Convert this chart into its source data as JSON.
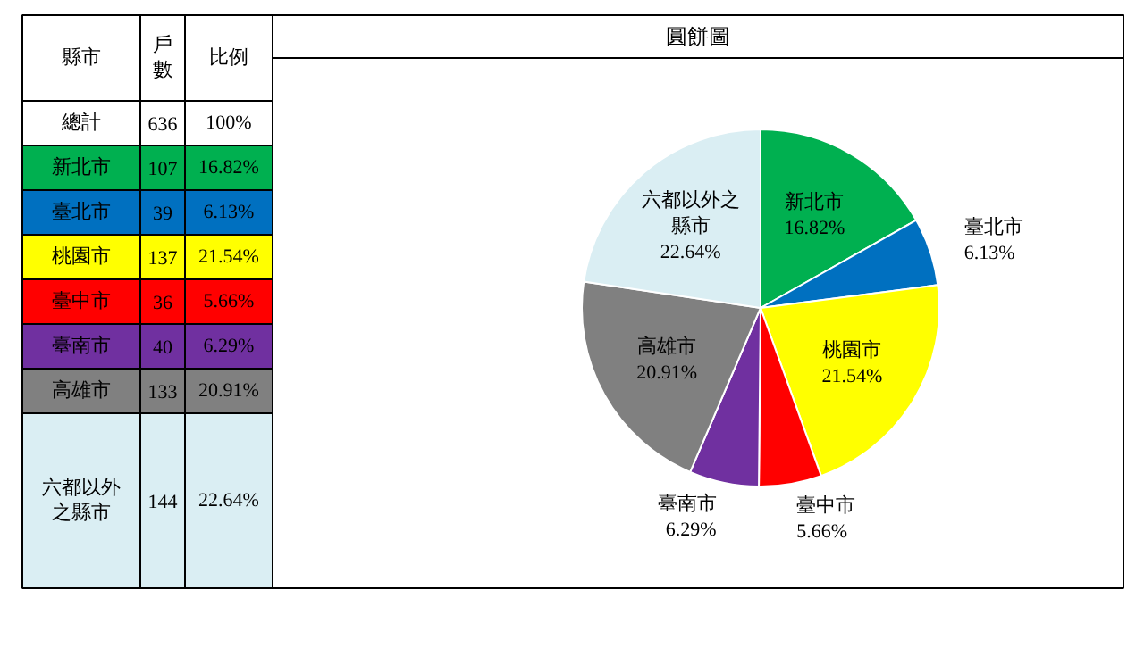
{
  "chart_data": {
    "type": "pie",
    "title": "圓餅圖",
    "categories": [
      "新北市",
      "臺北市",
      "桃園市",
      "臺中市",
      "臺南市",
      "高雄市",
      "六都以外之縣市"
    ],
    "values": [
      16.82,
      6.13,
      21.54,
      5.66,
      6.29,
      20.91,
      22.64
    ],
    "legend": "left",
    "value_labels": [
      "16.82%",
      "6.13%",
      "21.54%",
      "5.66%",
      "6.29%",
      "20.91%",
      "22.64%"
    ],
    "colors": [
      "#00b050",
      "#0070c0",
      "#ffff00",
      "#ff0000",
      "#7030a0",
      "#808080",
      "#daeef3"
    ],
    "annotations": [
      "縣市",
      "戶數",
      "比例",
      "總計",
      "636",
      "100%",
      "107",
      "39",
      "137",
      "36",
      "40",
      "133",
      "144"
    ]
  }
}
